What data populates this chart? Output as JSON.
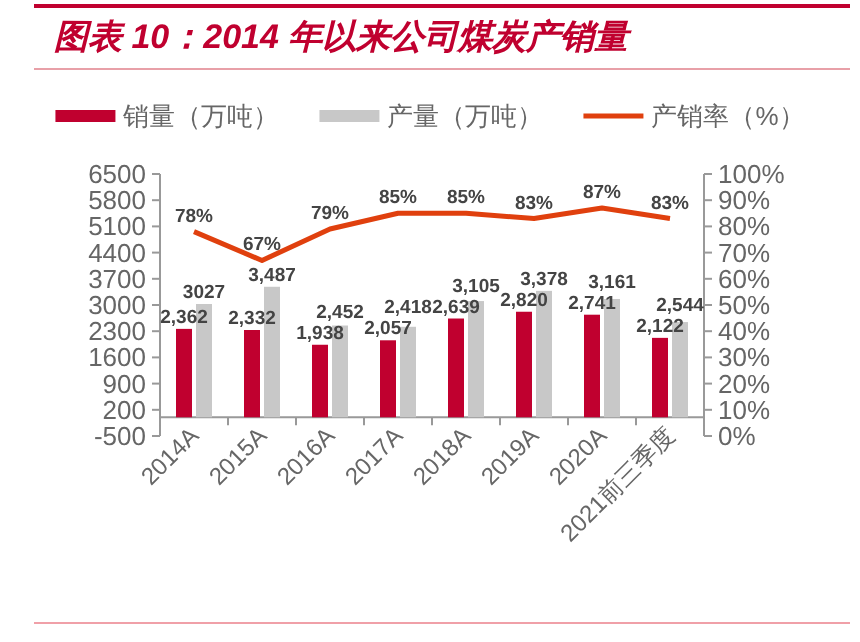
{
  "chart_data": {
    "type": "bar",
    "title": "图表 10：2014 年以来公司煤炭产销量",
    "categories": [
      "2014A",
      "2015A",
      "2016A",
      "2017A",
      "2018A",
      "2019A",
      "2020A",
      "2021前三季度"
    ],
    "series": [
      {
        "name": "销量（万吨）",
        "color": "#c0002f",
        "values": [
          2362,
          2332,
          1938,
          2057,
          2639,
          2820,
          2741,
          2122
        ],
        "value_labels": [
          "2,362",
          "2,332",
          "1,938",
          "2,057",
          "2,639",
          "2,820",
          "2,741",
          "2,122"
        ]
      },
      {
        "name": "产量（万吨）",
        "color": "#c8c8c8",
        "values": [
          3027,
          3487,
          2452,
          2418,
          3105,
          3378,
          3161,
          2544
        ],
        "value_labels": [
          "3027",
          "3,487",
          "2,452",
          "2,418",
          "3,105",
          "3,378",
          "3,161",
          "2,544"
        ]
      },
      {
        "name": "产销率（%）",
        "type": "line",
        "axis": "y2",
        "color": "#e0400e",
        "values": [
          78,
          67,
          79,
          85,
          85,
          83,
          87,
          83
        ],
        "value_labels": [
          "78%",
          "67%",
          "79%",
          "85%",
          "85%",
          "83%",
          "87%",
          "83%"
        ]
      }
    ],
    "ylim": [
      -500,
      6500
    ],
    "yticks": [
      -500,
      200,
      900,
      1600,
      2300,
      3000,
      3700,
      4400,
      5100,
      5800,
      6500
    ],
    "y2lim": [
      0,
      100
    ],
    "y2ticks": [
      {
        "value": 0,
        "label": "0%"
      },
      {
        "value": 10,
        "label": "10%"
      },
      {
        "value": 20,
        "label": "20%"
      },
      {
        "value": 30,
        "label": "30%"
      },
      {
        "value": 40,
        "label": "40%"
      },
      {
        "value": 50,
        "label": "50%"
      },
      {
        "value": 60,
        "label": "60%"
      },
      {
        "value": 70,
        "label": "70%"
      },
      {
        "value": 80,
        "label": "80%"
      },
      {
        "value": 90,
        "label": "90%"
      },
      {
        "value": 100,
        "label": "100%"
      }
    ],
    "legend": "top",
    "grid": false
  }
}
